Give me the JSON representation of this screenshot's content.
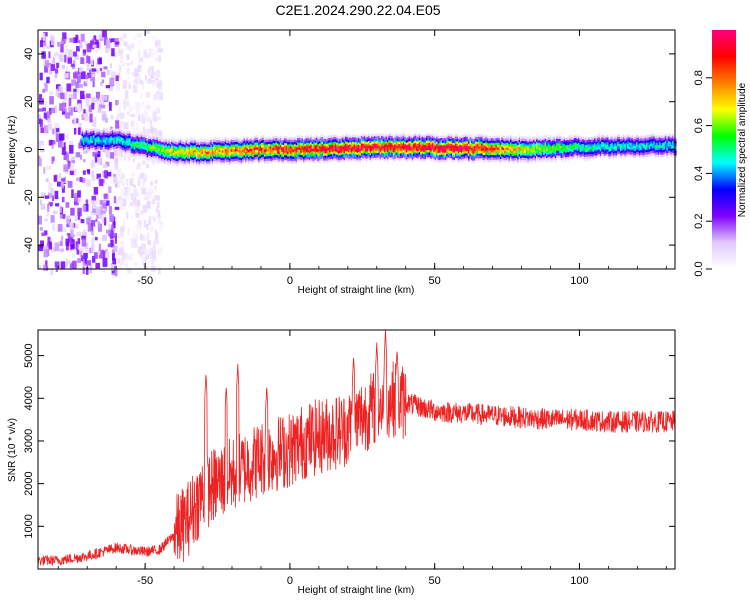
{
  "title": "C2E1.2024.290.22.04.E05",
  "chart_data": [
    {
      "type": "heatmap",
      "xlabel": "Height of straight line (km)",
      "ylabel": "Frequency (Hz)",
      "xlim": [
        -87,
        133
      ],
      "ylim": [
        -50,
        50
      ],
      "xticks": [
        -50,
        0,
        50,
        100
      ],
      "xtick_labels": [
        "-50",
        "0",
        "50",
        "100"
      ],
      "yticks": [
        -40,
        -20,
        0,
        20,
        40
      ],
      "ytick_labels": [
        "-40",
        "-20",
        "0",
        "20",
        "40"
      ],
      "colorbar": {
        "label": "Normalized spectral amplitude",
        "range": [
          0,
          1
        ],
        "ticks": [
          0,
          0.2,
          0.4,
          0.6,
          0.8
        ],
        "tick_labels": [
          "0.0",
          "0.2",
          "0.4",
          "0.6",
          "0.8"
        ],
        "colors": [
          "#ffffff",
          "#e0c8ff",
          "#7f00ff",
          "#0000ff",
          "#00ffff",
          "#00ff00",
          "#ffff00",
          "#ff7f00",
          "#ff0000",
          "#ff0080"
        ]
      },
      "ridge": {
        "x": [
          -70,
          -60,
          -50,
          -40,
          -30,
          -20,
          -10,
          0,
          20,
          40,
          60,
          80,
          100,
          120,
          133
        ],
        "frequency": [
          4,
          4,
          1,
          -1,
          -1,
          -0.5,
          0,
          0,
          0.5,
          1,
          0.5,
          0,
          1,
          1.5,
          1.5
        ],
        "peak_amplitude": [
          0.45,
          0.45,
          0.55,
          0.7,
          0.75,
          0.8,
          0.85,
          0.9,
          0.95,
          0.95,
          1.0,
          0.7,
          0.5,
          0.45,
          0.45
        ]
      },
      "noise_region_x": [
        -87,
        -45
      ]
    },
    {
      "type": "line",
      "xlabel": "Height of straight line (km)",
      "ylabel": "SNR (10 * v/v)",
      "xlim": [
        -87,
        133
      ],
      "ylim": [
        0,
        5600
      ],
      "xticks": [
        -50,
        0,
        50,
        100
      ],
      "xtick_labels": [
        "-50",
        "0",
        "50",
        "100"
      ],
      "yticks": [
        1000,
        2000,
        3000,
        4000,
        5000
      ],
      "ytick_labels": [
        "1000",
        "2000",
        "3000",
        "4000",
        "5000"
      ],
      "series": [
        {
          "color": "#ee2222",
          "x": [
            -87,
            -80,
            -70,
            -60,
            -50,
            -45,
            -40,
            -35,
            -30,
            -25,
            -20,
            -15,
            -10,
            -5,
            0,
            5,
            10,
            15,
            20,
            25,
            30,
            35,
            40,
            45,
            50,
            60,
            70,
            80,
            90,
            100,
            110,
            120,
            133
          ],
          "y": [
            200,
            200,
            300,
            500,
            400,
            450,
            800,
            1200,
            1800,
            2000,
            2200,
            2400,
            2600,
            2700,
            2800,
            3000,
            3100,
            3200,
            3300,
            3600,
            3800,
            4000,
            3900,
            3800,
            3700,
            3650,
            3600,
            3550,
            3500,
            3500,
            3450,
            3450,
            3450
          ],
          "spikes": [
            {
              "x": -29,
              "y": 4600
            },
            {
              "x": -22,
              "y": 4300
            },
            {
              "x": -18,
              "y": 4800
            },
            {
              "x": -8,
              "y": 4300
            },
            {
              "x": 22,
              "y": 5000
            },
            {
              "x": 30,
              "y": 5300
            },
            {
              "x": 33,
              "y": 5600
            },
            {
              "x": 37,
              "y": 5150
            }
          ]
        }
      ]
    }
  ]
}
